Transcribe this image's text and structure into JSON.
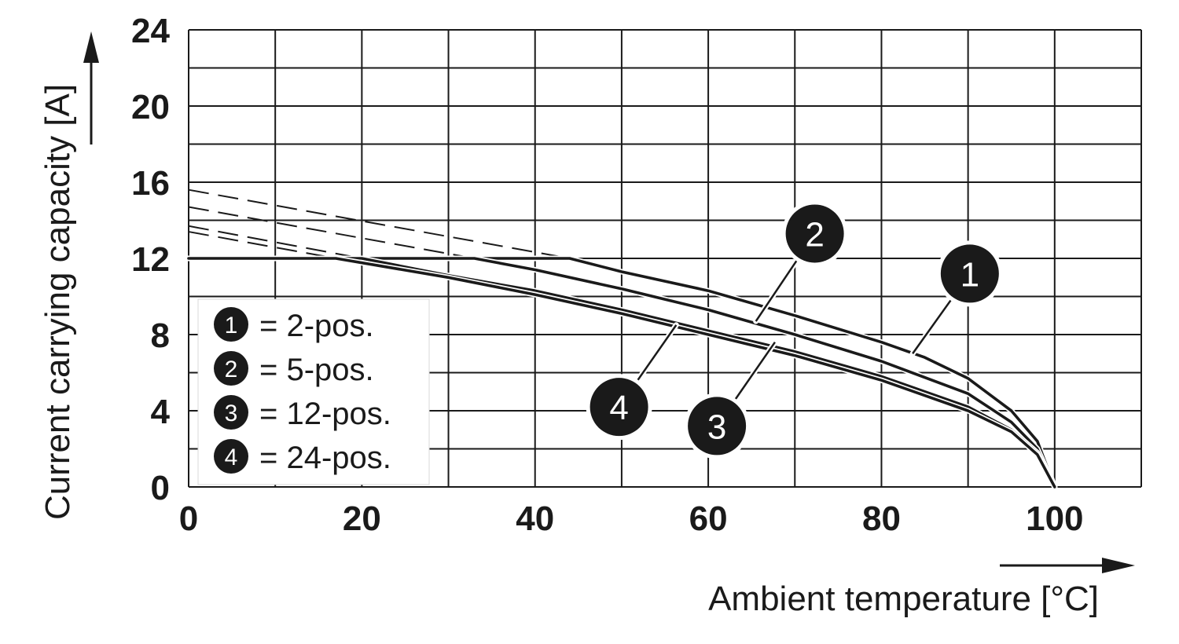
{
  "chart_data": {
    "type": "line",
    "xlabel": "Ambient temperature [°C]",
    "ylabel": "Current carrying capacity [A]",
    "xlim": [
      0,
      110
    ],
    "ylim": [
      0,
      24
    ],
    "x_ticks": [
      "0",
      "20",
      "40",
      "60",
      "80",
      "100"
    ],
    "y_ticks": [
      "0",
      "4",
      "8",
      "12",
      "16",
      "20",
      "24"
    ],
    "grid": true,
    "legend_position": "bottom-left",
    "legend": [
      {
        "marker": "1",
        "label": "= 2-pos."
      },
      {
        "marker": "2",
        "label": "= 5-pos."
      },
      {
        "marker": "3",
        "label": "= 12-pos."
      },
      {
        "marker": "4",
        "label": "= 24-pos."
      }
    ],
    "series": [
      {
        "marker": "1",
        "x": [
          0,
          44,
          50,
          60,
          70,
          80,
          85,
          90,
          95,
          98,
          100
        ],
        "y": [
          12,
          12,
          11.3,
          10.3,
          9.0,
          7.6,
          6.8,
          5.7,
          4.0,
          2.4,
          0
        ],
        "dashed_x": [
          0,
          44
        ],
        "dashed_y": [
          15.6,
          12
        ]
      },
      {
        "marker": "2",
        "x": [
          0,
          33,
          40,
          50,
          60,
          70,
          80,
          90,
          95,
          98,
          100
        ],
        "y": [
          12,
          12,
          11.4,
          10.4,
          9.3,
          8.0,
          6.6,
          4.9,
          3.4,
          2.0,
          0
        ],
        "dashed_x": [
          0,
          33
        ],
        "dashed_y": [
          14.7,
          12
        ]
      },
      {
        "marker": "3",
        "x": [
          0,
          20,
          30,
          40,
          50,
          60,
          70,
          80,
          90,
          95,
          98,
          100
        ],
        "y": [
          12,
          12,
          11.1,
          10.3,
          9.3,
          8.2,
          7.1,
          5.8,
          4.2,
          3.0,
          1.8,
          0
        ],
        "dashed_x": [
          0,
          20
        ],
        "dashed_y": [
          13.7,
          12
        ]
      },
      {
        "marker": "4",
        "x": [
          0,
          17,
          30,
          40,
          50,
          60,
          70,
          80,
          90,
          95,
          98,
          100
        ],
        "y": [
          12,
          12,
          11.0,
          10.1,
          9.1,
          8.0,
          6.9,
          5.6,
          4.0,
          2.9,
          1.7,
          0
        ],
        "dashed_x": [
          0,
          17
        ],
        "dashed_y": [
          13.4,
          12
        ]
      }
    ],
    "annotations": [
      {
        "marker": "1",
        "label_x": 90.2,
        "label_y": 11.2,
        "target_x": 83.6,
        "target_y": 7.0
      },
      {
        "marker": "2",
        "label_x": 72.3,
        "label_y": 13.3,
        "target_x": 65.5,
        "target_y": 8.7
      },
      {
        "marker": "3",
        "label_x": 61.0,
        "label_y": 3.2,
        "target_x": 67.7,
        "target_y": 7.6
      },
      {
        "marker": "4",
        "label_x": 49.7,
        "label_y": 4.2,
        "target_x": 56.3,
        "target_y": 8.5
      }
    ]
  }
}
